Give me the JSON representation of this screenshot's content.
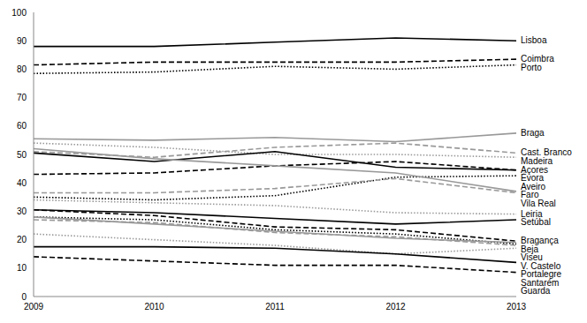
{
  "chart_data": {
    "type": "line",
    "categories": [
      "2009",
      "2010",
      "2011",
      "2012",
      "2013"
    ],
    "ylim": [
      0,
      100
    ],
    "yticks": [
      0,
      10,
      20,
      30,
      40,
      50,
      60,
      70,
      80,
      90,
      100
    ],
    "grid": false,
    "series": [
      {
        "name": "Lisboa",
        "color": "#000000",
        "line_style": "solid",
        "values": [
          88,
          88,
          89.5,
          91,
          90
        ]
      },
      {
        "name": "Coimbra",
        "color": "#000000",
        "line_style": "dashed",
        "values": [
          81.5,
          82.5,
          82.5,
          82.5,
          83.5
        ]
      },
      {
        "name": "Porto",
        "color": "#000000",
        "line_style": "dotted",
        "values": [
          78.5,
          79,
          81,
          80,
          81.5
        ]
      },
      {
        "name": "Braga",
        "color": "#999999",
        "line_style": "solid",
        "values": [
          55.5,
          55,
          56,
          54.5,
          57.5
        ]
      },
      {
        "name": "Cast. Branco",
        "color": "#999999",
        "line_style": "dashed",
        "values": [
          51,
          49,
          52.5,
          54,
          50.5
        ]
      },
      {
        "name": "Madeira",
        "color": "#999999",
        "line_style": "dotted",
        "values": [
          54,
          52.5,
          50,
          50,
          49
        ]
      },
      {
        "name": "Açores",
        "color": "#000000",
        "line_style": "solid",
        "values": [
          50.5,
          47.5,
          51,
          45.5,
          44.5
        ]
      },
      {
        "name": "Évora",
        "color": "#000000",
        "line_style": "dashed",
        "values": [
          43,
          43.5,
          46,
          47.5,
          44.5
        ]
      },
      {
        "name": "Aveiro",
        "color": "#000000",
        "line_style": "dotted",
        "values": [
          35,
          34,
          35.5,
          42,
          42.5
        ]
      },
      {
        "name": "Faro",
        "color": "#999999",
        "line_style": "solid",
        "values": [
          52,
          48.5,
          46,
          43.5,
          37
        ]
      },
      {
        "name": "Vila Real",
        "color": "#999999",
        "line_style": "dashed",
        "values": [
          36.5,
          36.5,
          38,
          41.5,
          36.5
        ]
      },
      {
        "name": "Leiria",
        "color": "#999999",
        "line_style": "dotted",
        "values": [
          34,
          33,
          32,
          29.5,
          29
        ]
      },
      {
        "name": "Setúbal",
        "color": "#000000",
        "line_style": "solid",
        "values": [
          30.5,
          29.5,
          27.5,
          25.5,
          27
        ]
      },
      {
        "name": "Bragança",
        "color": "#000000",
        "line_style": "dashed",
        "values": [
          30.5,
          28.5,
          24.5,
          23.5,
          19.5
        ]
      },
      {
        "name": "Beja",
        "color": "#000000",
        "line_style": "dotted",
        "values": [
          28,
          27,
          23.5,
          22,
          18.5
        ]
      },
      {
        "name": "Viseu",
        "color": "#999999",
        "line_style": "solid",
        "values": [
          28,
          25.5,
          23,
          20.5,
          19
        ]
      },
      {
        "name": "V. Castelo",
        "color": "#999999",
        "line_style": "dashed",
        "values": [
          27,
          26,
          22.5,
          21,
          18
        ]
      },
      {
        "name": "Portalegre",
        "color": "#999999",
        "line_style": "dotted",
        "values": [
          22,
          20,
          18,
          15,
          17
        ]
      },
      {
        "name": "Santarém",
        "color": "#000000",
        "line_style": "solid",
        "values": [
          17.5,
          17.5,
          17,
          15,
          12
        ]
      },
      {
        "name": "Guarda",
        "color": "#000000",
        "line_style": "dashed",
        "values": [
          14,
          12.5,
          11,
          11,
          8.5
        ]
      }
    ]
  }
}
